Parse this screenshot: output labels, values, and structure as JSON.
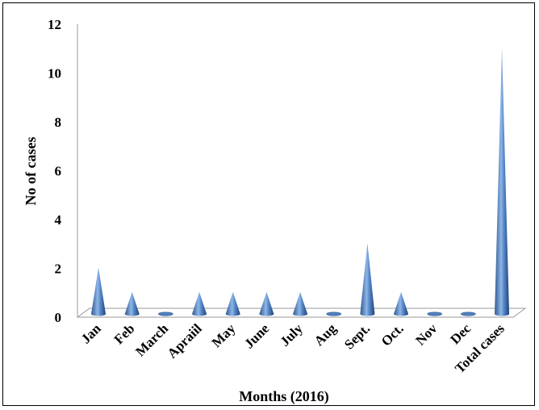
{
  "chart_data": {
    "type": "bar",
    "bar_shape": "cone",
    "title": "",
    "xlabel": "Months (2016)",
    "ylabel": "No of cases",
    "categories": [
      "Jan",
      "Feb",
      "March",
      "Apraiil",
      "May",
      "June",
      "July",
      "Aug",
      "Sept.",
      "Oct.",
      "Nov",
      "Dec",
      "Total cases"
    ],
    "values": [
      2,
      1,
      0,
      1,
      1,
      1,
      1,
      0,
      3,
      1,
      0,
      0,
      11
    ],
    "ylim": [
      0,
      12
    ],
    "yticks": [
      "0",
      "2",
      "4",
      "6",
      "8",
      "10",
      "12"
    ],
    "grid": false,
    "legend": "none",
    "bar_color": "#4f81bd"
  }
}
